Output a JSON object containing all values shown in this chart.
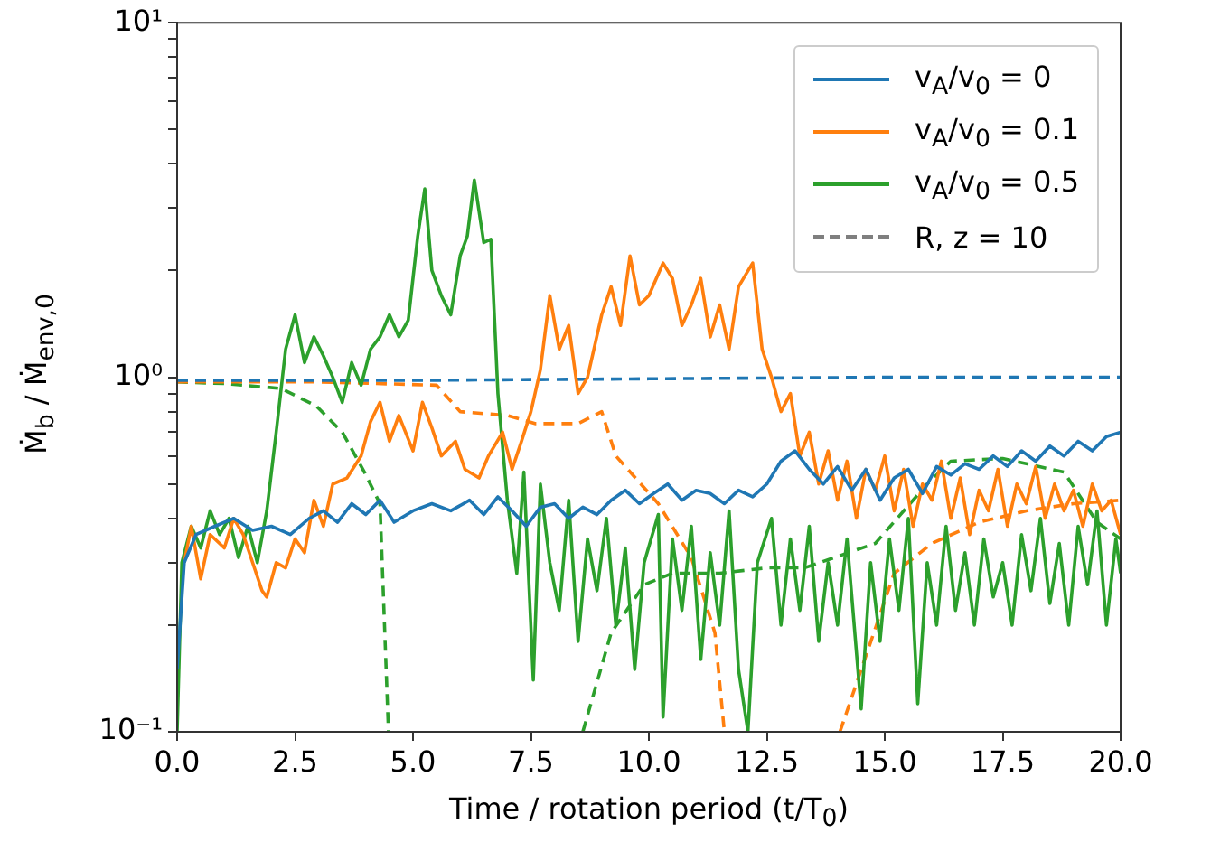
{
  "chart_data": {
    "type": "line",
    "xlabel": "Time / rotation period (t/T$_{0}$)",
    "ylabel": "Ṁ$_{b}$ / Ṁ$_{env,0}$",
    "log": "y",
    "xlim": [
      0,
      20
    ],
    "xticks": [
      {
        "value": 0,
        "label": "0.0"
      },
      2.5,
      {
        "value": 5,
        "label": "5.0"
      },
      7.5,
      {
        "value": 10,
        "label": "10.0"
      },
      12.5,
      {
        "value": 15,
        "label": "15.0"
      },
      17.5,
      {
        "value": 20,
        "label": "20.0"
      }
    ],
    "ylim": [
      0.1,
      10
    ],
    "yticks": [
      {
        "value": 0.1,
        "label": "10⁻¹"
      },
      {
        "value": 0.2,
        "label": null
      },
      {
        "value": 0.3,
        "label": null
      },
      {
        "value": 0.4,
        "label": null
      },
      {
        "value": 0.5,
        "label": null
      },
      {
        "value": 0.6,
        "label": null
      },
      {
        "value": 0.7,
        "label": null
      },
      {
        "value": 0.8,
        "label": null
      },
      {
        "value": 0.9,
        "label": null
      },
      {
        "value": 1,
        "label": "10⁰"
      },
      {
        "value": 2,
        "label": null
      },
      {
        "value": 3,
        "label": null
      },
      {
        "value": 4,
        "label": null
      },
      {
        "value": 5,
        "label": null
      },
      {
        "value": 6,
        "label": null
      },
      {
        "value": 7,
        "label": null
      },
      {
        "value": 8,
        "label": null
      },
      {
        "value": 9,
        "label": null
      },
      {
        "value": 10,
        "label": "10¹"
      }
    ],
    "grid": false,
    "legend": "top right",
    "marker": "none",
    "series": [
      {
        "name": "v$_{A}$/v$_{0}$ = 0",
        "color": "#1f77b4",
        "line_style": "solid",
        "x": [
          0,
          0.15,
          0.4,
          0.8,
          1.2,
          1.6,
          2.0,
          2.4,
          2.8,
          3.1,
          3.4,
          3.7,
          4.0,
          4.3,
          4.6,
          5.0,
          5.4,
          5.8,
          6.2,
          6.5,
          6.8,
          7.1,
          7.4,
          7.7,
          8.0,
          8.3,
          8.6,
          8.9,
          9.2,
          9.5,
          9.8,
          10.1,
          10.4,
          10.7,
          11.0,
          11.3,
          11.6,
          11.9,
          12.2,
          12.5,
          12.8,
          13.1,
          13.4,
          13.7,
          14.0,
          14.3,
          14.6,
          14.9,
          15.2,
          15.5,
          15.8,
          16.1,
          16.4,
          16.7,
          17.0,
          17.3,
          17.6,
          17.9,
          18.2,
          18.5,
          18.8,
          19.1,
          19.4,
          19.7,
          20
        ],
        "values": [
          0.15,
          0.3,
          0.36,
          0.38,
          0.4,
          0.37,
          0.38,
          0.36,
          0.4,
          0.42,
          0.39,
          0.44,
          0.41,
          0.45,
          0.39,
          0.42,
          0.44,
          0.42,
          0.45,
          0.41,
          0.46,
          0.42,
          0.38,
          0.43,
          0.44,
          0.4,
          0.43,
          0.41,
          0.45,
          0.48,
          0.44,
          0.47,
          0.5,
          0.45,
          0.48,
          0.47,
          0.44,
          0.48,
          0.46,
          0.5,
          0.58,
          0.62,
          0.55,
          0.5,
          0.56,
          0.48,
          0.55,
          0.45,
          0.52,
          0.55,
          0.47,
          0.56,
          0.53,
          0.57,
          0.55,
          0.6,
          0.56,
          0.62,
          0.58,
          0.64,
          0.6,
          0.66,
          0.62,
          0.68,
          0.7
        ]
      },
      {
        "name": "v$_{A}$/v$_{0}$ = 0.1",
        "color": "#ff7f0e",
        "line_style": "solid",
        "x": [
          0.15,
          0.3,
          0.5,
          0.7,
          1.0,
          1.2,
          1.4,
          1.6,
          1.8,
          1.9,
          2.1,
          2.3,
          2.5,
          2.7,
          2.9,
          3.1,
          3.3,
          3.6,
          3.9,
          4.1,
          4.3,
          4.5,
          4.7,
          5.0,
          5.2,
          5.4,
          5.6,
          5.9,
          6.1,
          6.4,
          6.6,
          6.9,
          7.1,
          7.3,
          7.5,
          7.7,
          7.9,
          8.1,
          8.3,
          8.5,
          8.7,
          9.0,
          9.2,
          9.4,
          9.6,
          9.8,
          10.0,
          10.3,
          10.5,
          10.7,
          10.9,
          11.1,
          11.3,
          11.5,
          11.7,
          11.9,
          12.2,
          12.4,
          12.6,
          12.8,
          13.0,
          13.2,
          13.4,
          13.6,
          13.8,
          14.0,
          14.2,
          14.4,
          14.6,
          14.8,
          15.0,
          15.2,
          15.4,
          15.6,
          15.8,
          16.0,
          16.2,
          16.4,
          16.6,
          16.8,
          17.0,
          17.2,
          17.4,
          17.6,
          17.8,
          18.0,
          18.2,
          18.4,
          18.6,
          18.8,
          19.0,
          19.2,
          19.4,
          19.6,
          19.8,
          20
        ],
        "values": [
          0.3,
          0.38,
          0.27,
          0.36,
          0.33,
          0.4,
          0.36,
          0.3,
          0.25,
          0.24,
          0.3,
          0.29,
          0.35,
          0.32,
          0.45,
          0.38,
          0.5,
          0.52,
          0.6,
          0.75,
          0.85,
          0.66,
          0.78,
          0.62,
          0.85,
          0.72,
          0.6,
          0.66,
          0.55,
          0.52,
          0.6,
          0.7,
          0.55,
          0.66,
          0.8,
          1.05,
          1.7,
          1.2,
          1.4,
          0.9,
          1.0,
          1.5,
          1.8,
          1.4,
          2.2,
          1.6,
          1.7,
          2.1,
          1.9,
          1.4,
          1.6,
          1.9,
          1.3,
          1.6,
          1.2,
          1.8,
          2.1,
          1.2,
          1.0,
          0.8,
          0.9,
          0.6,
          0.7,
          0.5,
          0.62,
          0.45,
          0.58,
          0.4,
          0.55,
          0.48,
          0.6,
          0.42,
          0.55,
          0.38,
          0.5,
          0.45,
          0.58,
          0.4,
          0.52,
          0.36,
          0.48,
          0.42,
          0.55,
          0.38,
          0.5,
          0.44,
          0.56,
          0.4,
          0.5,
          0.42,
          0.48,
          0.38,
          0.5,
          0.42,
          0.45,
          0.36
        ]
      },
      {
        "name": "v$_{A}$/v$_{0}$ = 0.5",
        "color": "#2ca02c",
        "line_style": "solid",
        "x": [
          0,
          0.1,
          0.3,
          0.5,
          0.7,
          0.9,
          1.1,
          1.3,
          1.5,
          1.7,
          1.9,
          2.1,
          2.3,
          2.5,
          2.7,
          2.9,
          3.1,
          3.3,
          3.5,
          3.7,
          3.9,
          4.1,
          4.3,
          4.5,
          4.7,
          4.9,
          5.1,
          5.25,
          5.4,
          5.6,
          5.8,
          6.0,
          6.15,
          6.3,
          6.5,
          6.65,
          6.8,
          7.0,
          7.2,
          7.35,
          7.55,
          7.7,
          7.9,
          8.1,
          8.3,
          8.5,
          8.7,
          8.9,
          9.1,
          9.3,
          9.5,
          9.7,
          9.9,
          10.2,
          10.3,
          10.5,
          10.7,
          10.9,
          11.1,
          11.3,
          11.5,
          11.7,
          11.9,
          12.1,
          12.3,
          12.6,
          12.8,
          13.0,
          13.2,
          13.4,
          13.6,
          13.8,
          14.0,
          14.2,
          14.5,
          14.7,
          14.9,
          15.1,
          15.3,
          15.5,
          15.7,
          15.9,
          16.1,
          16.3,
          16.5,
          16.7,
          16.9,
          17.1,
          17.3,
          17.5,
          17.7,
          17.9,
          18.1,
          18.3,
          18.5,
          18.7,
          18.9,
          19.1,
          19.3,
          19.5,
          19.7,
          19.9,
          20
        ],
        "values": [
          0.1,
          0.3,
          0.38,
          0.33,
          0.42,
          0.36,
          0.4,
          0.31,
          0.38,
          0.3,
          0.42,
          0.7,
          1.2,
          1.5,
          1.1,
          1.3,
          1.15,
          1.0,
          0.85,
          1.1,
          0.95,
          1.2,
          1.3,
          1.5,
          1.3,
          1.45,
          2.5,
          3.4,
          2.0,
          1.7,
          1.5,
          2.2,
          2.5,
          3.6,
          2.4,
          2.45,
          0.9,
          0.45,
          0.28,
          0.54,
          0.14,
          0.5,
          0.3,
          0.22,
          0.45,
          0.18,
          0.35,
          0.25,
          0.4,
          0.2,
          0.33,
          0.15,
          0.3,
          0.41,
          0.11,
          0.35,
          0.22,
          0.38,
          0.16,
          0.32,
          0.2,
          0.42,
          0.15,
          0.1,
          0.3,
          0.4,
          0.2,
          0.35,
          0.22,
          0.38,
          0.18,
          0.3,
          0.2,
          0.35,
          0.116,
          0.3,
          0.18,
          0.35,
          0.22,
          0.4,
          0.12,
          0.3,
          0.2,
          0.38,
          0.22,
          0.32,
          0.2,
          0.35,
          0.24,
          0.3,
          0.2,
          0.36,
          0.25,
          0.4,
          0.23,
          0.34,
          0.2,
          0.38,
          0.26,
          0.42,
          0.2,
          0.35,
          0.28
        ]
      },
      {
        "color": "#1f77b4",
        "line_style": "dashed",
        "x": [
          0,
          5,
          10,
          15,
          20
        ],
        "values": [
          0.98,
          0.98,
          0.99,
          1.0,
          1.0
        ]
      },
      {
        "color": "#ff7f0e",
        "line_style": "dashed",
        "x": [
          0,
          3,
          5.5,
          6,
          7,
          7.6,
          8.5,
          9,
          9.3,
          10.2,
          10.9,
          11.4,
          11.6,
          12.8,
          14.05,
          15.2,
          16,
          17,
          18,
          19,
          20
        ],
        "values": [
          0.97,
          0.97,
          0.95,
          0.8,
          0.78,
          0.74,
          0.74,
          0.8,
          0.6,
          0.44,
          0.31,
          0.19,
          0.1,
          null,
          0.1,
          0.28,
          0.34,
          0.39,
          0.42,
          0.44,
          0.45
        ]
      },
      {
        "color": "#2ca02c",
        "line_style": "dashed",
        "x": [
          0,
          1,
          2.2,
          2.95,
          3.5,
          3.97,
          4.3,
          4.48,
          6.5,
          8.6,
          9.2,
          9.9,
          10.5,
          11.5,
          12.5,
          13.3,
          14.8,
          15.9,
          16.4,
          17.5,
          18.8,
          19.5,
          20
        ],
        "values": [
          0.97,
          0.96,
          0.93,
          0.83,
          0.7,
          0.54,
          0.44,
          0.1,
          null,
          0.1,
          0.19,
          0.26,
          0.28,
          0.28,
          0.29,
          0.29,
          0.34,
          0.5,
          0.58,
          0.59,
          0.54,
          0.39,
          0.35
        ]
      },
      {
        "name": "R, z = 10",
        "color": "#7f7f7f",
        "line_style": "dashed"
      }
    ]
  }
}
